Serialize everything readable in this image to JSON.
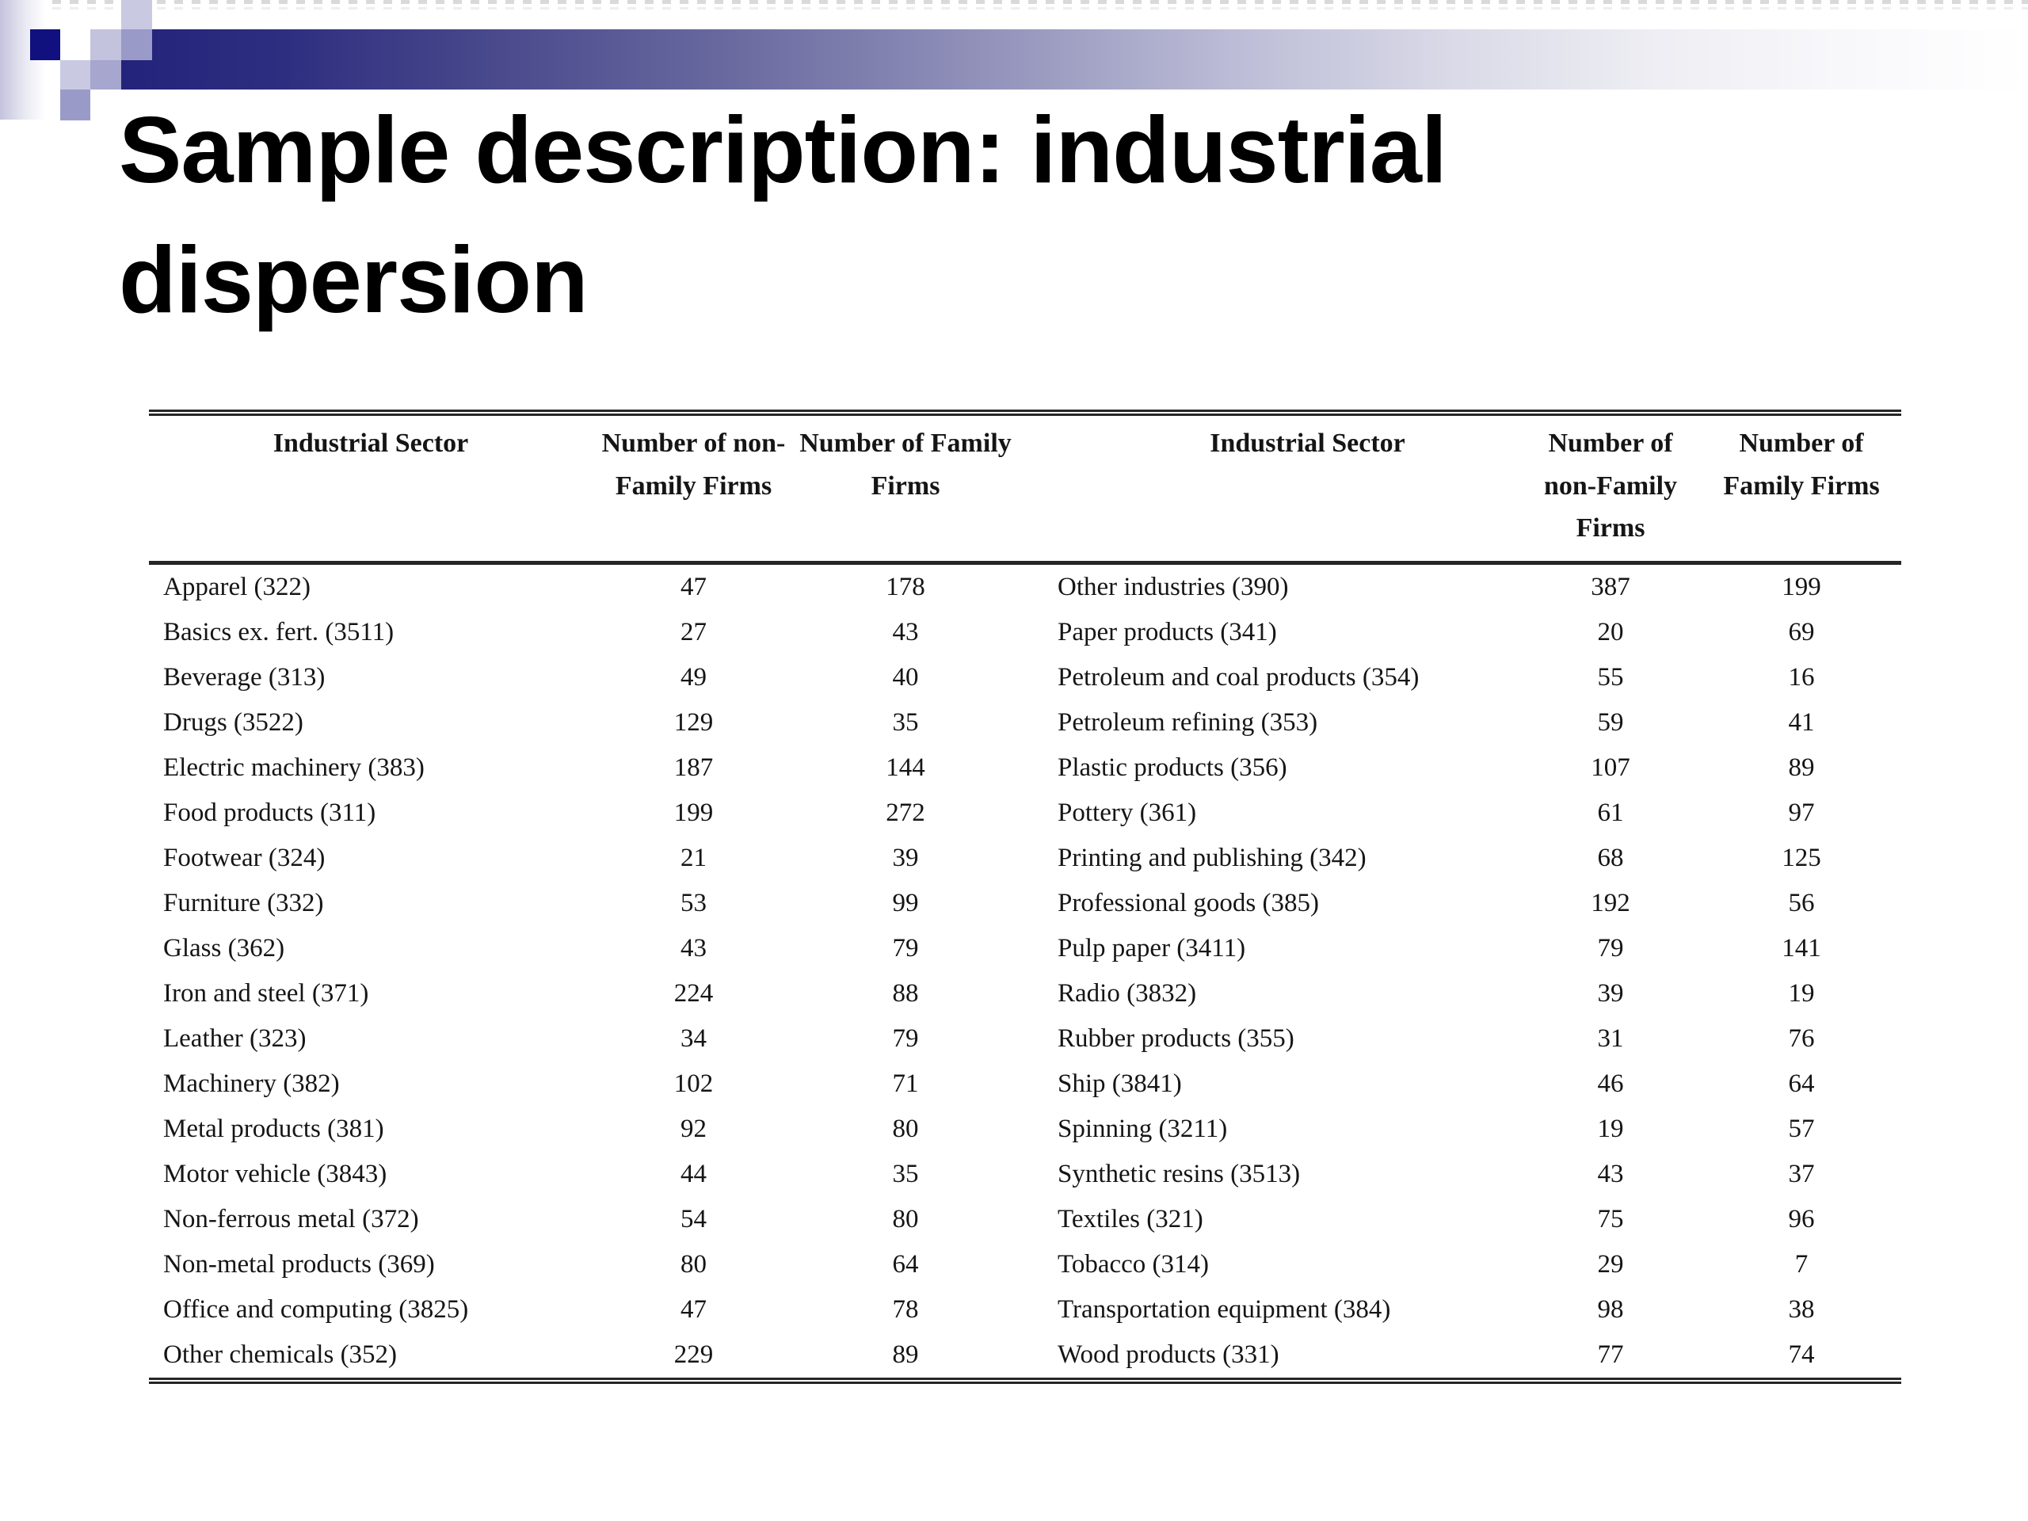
{
  "slide": {
    "title_line1": "Sample description: industrial",
    "title_line2": "dispersion"
  },
  "colors": {
    "navy_square": "#10107e",
    "bar_navy": "#23237b",
    "lavender_pale": "#c9c9e2",
    "lavender_light": "#c3c3dd",
    "lavender_mid": "#9a9ac9",
    "lavender_mid2": "#a6a6cf",
    "rule_dark": "#262626",
    "text": "#151515"
  },
  "table": {
    "headers": {
      "sector": "Industrial Sector",
      "non_family": "Number of non-Family Firms",
      "family": "Number of Family Firms"
    },
    "left_rows": [
      {
        "sector": "Apparel (322)",
        "non_family": "47",
        "family": "178"
      },
      {
        "sector": "Basics ex. fert. (3511)",
        "non_family": "27",
        "family": "43"
      },
      {
        "sector": "Beverage (313)",
        "non_family": "49",
        "family": "40"
      },
      {
        "sector": "Drugs (3522)",
        "non_family": "129",
        "family": "35"
      },
      {
        "sector": "Electric machinery (383)",
        "non_family": "187",
        "family": "144"
      },
      {
        "sector": "Food products (311)",
        "non_family": "199",
        "family": "272"
      },
      {
        "sector": "Footwear (324)",
        "non_family": "21",
        "family": "39"
      },
      {
        "sector": "Furniture (332)",
        "non_family": "53",
        "family": "99"
      },
      {
        "sector": "Glass (362)",
        "non_family": "43",
        "family": "79"
      },
      {
        "sector": "Iron and steel (371)",
        "non_family": "224",
        "family": "88"
      },
      {
        "sector": "Leather (323)",
        "non_family": "34",
        "family": "79"
      },
      {
        "sector": "Machinery (382)",
        "non_family": "102",
        "family": "71"
      },
      {
        "sector": "Metal products (381)",
        "non_family": "92",
        "family": "80"
      },
      {
        "sector": "Motor vehicle (3843)",
        "non_family": "44",
        "family": "35"
      },
      {
        "sector": "Non-ferrous metal (372)",
        "non_family": "54",
        "family": "80"
      },
      {
        "sector": "Non-metal products (369)",
        "non_family": "80",
        "family": "64"
      },
      {
        "sector": "Office and computing (3825)",
        "non_family": "47",
        "family": "78"
      },
      {
        "sector": "Other chemicals (352)",
        "non_family": "229",
        "family": "89"
      }
    ],
    "right_rows": [
      {
        "sector": "Other industries (390)",
        "non_family": "387",
        "family": "199"
      },
      {
        "sector": "Paper products (341)",
        "non_family": "20",
        "family": "69"
      },
      {
        "sector": "Petroleum and coal products (354)",
        "non_family": "55",
        "family": "16"
      },
      {
        "sector": "Petroleum refining (353)",
        "non_family": "59",
        "family": "41"
      },
      {
        "sector": "Plastic products (356)",
        "non_family": "107",
        "family": "89"
      },
      {
        "sector": "Pottery (361)",
        "non_family": "61",
        "family": "97"
      },
      {
        "sector": "Printing and publishing (342)",
        "non_family": "68",
        "family": "125"
      },
      {
        "sector": "Professional goods (385)",
        "non_family": "192",
        "family": "56"
      },
      {
        "sector": "Pulp paper (3411)",
        "non_family": "79",
        "family": "141"
      },
      {
        "sector": "Radio (3832)",
        "non_family": "39",
        "family": "19"
      },
      {
        "sector": "Rubber products (355)",
        "non_family": "31",
        "family": "76"
      },
      {
        "sector": "Ship (3841)",
        "non_family": "46",
        "family": "64"
      },
      {
        "sector": "Spinning (3211)",
        "non_family": "19",
        "family": "57"
      },
      {
        "sector": "Synthetic resins (3513)",
        "non_family": "43",
        "family": "37"
      },
      {
        "sector": "Textiles (321)",
        "non_family": "75",
        "family": "96"
      },
      {
        "sector": "Tobacco (314)",
        "non_family": "29",
        "family": "7"
      },
      {
        "sector": "Transportation equipment (384)",
        "non_family": "98",
        "family": "38"
      },
      {
        "sector": "Wood products (331)",
        "non_family": "77",
        "family": "74"
      }
    ]
  }
}
